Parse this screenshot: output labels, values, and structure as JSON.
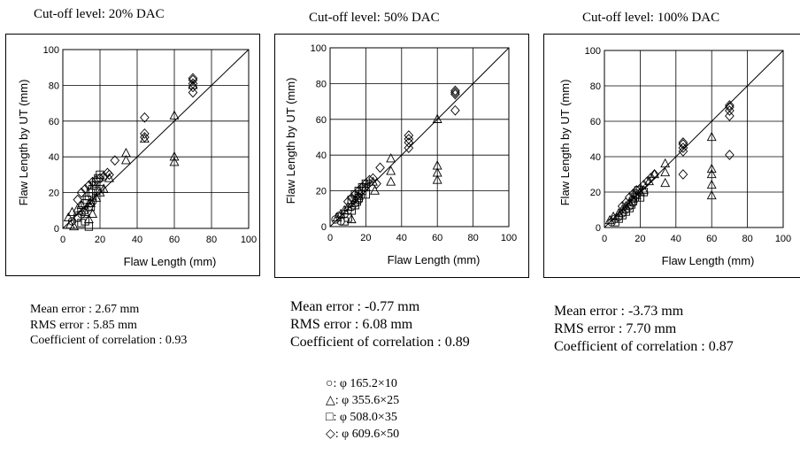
{
  "chart_data": [
    {
      "type": "scatter",
      "title": "Cut-off level: 20% DAC",
      "xlabel": "Flaw Length (mm)",
      "ylabel": "Flaw Length by UT (mm)",
      "xlim": [
        0,
        100
      ],
      "ylim": [
        0,
        100
      ],
      "x_ticks": [
        "0",
        "20",
        "40",
        "60",
        "80",
        "100"
      ],
      "y_ticks": [
        "0",
        "20",
        "40",
        "60",
        "80",
        "100"
      ],
      "grid": true,
      "reference_line": "y = x",
      "series": [
        {
          "marker": "circle",
          "points": [
            [
              5,
              4
            ],
            [
              8,
              6
            ],
            [
              10,
              8
            ],
            [
              12,
              10
            ],
            [
              14,
              12
            ],
            [
              15,
              14
            ],
            [
              16,
              15
            ]
          ]
        },
        {
          "marker": "triangle",
          "points": [
            [
              3,
              6
            ],
            [
              4,
              2
            ],
            [
              5,
              9
            ],
            [
              6,
              1
            ],
            [
              8,
              11
            ],
            [
              10,
              13
            ],
            [
              12,
              9
            ],
            [
              14,
              5
            ],
            [
              15,
              14
            ],
            [
              16,
              8
            ],
            [
              18,
              17
            ],
            [
              20,
              20
            ],
            [
              22,
              22
            ],
            [
              25,
              28
            ],
            [
              34,
              38
            ],
            [
              34,
              42
            ],
            [
              44,
              50
            ],
            [
              60,
              37
            ],
            [
              60,
              40
            ],
            [
              60,
              63
            ],
            [
              70,
              80
            ]
          ]
        },
        {
          "marker": "square",
          "points": [
            [
              8,
              6
            ],
            [
              10,
              10
            ],
            [
              12,
              14
            ],
            [
              14,
              18
            ],
            [
              15,
              20
            ],
            [
              16,
              22
            ],
            [
              17,
              24
            ],
            [
              18,
              26
            ],
            [
              19,
              28
            ],
            [
              20,
              30
            ],
            [
              10,
              3
            ],
            [
              12,
              4
            ],
            [
              14,
              1
            ],
            [
              16,
              18
            ],
            [
              18,
              21
            ],
            [
              20,
              22
            ],
            [
              15,
              12
            ],
            [
              13,
              16
            ]
          ]
        },
        {
          "marker": "diamond",
          "points": [
            [
              12,
              22
            ],
            [
              14,
              24
            ],
            [
              16,
              26
            ],
            [
              18,
              27
            ],
            [
              20,
              28
            ],
            [
              22,
              29
            ],
            [
              24,
              31
            ],
            [
              25,
              30
            ],
            [
              28,
              38
            ],
            [
              44,
              51
            ],
            [
              44,
              53
            ],
            [
              44,
              62
            ],
            [
              70,
              76
            ],
            [
              70,
              79
            ],
            [
              70,
              81
            ],
            [
              70,
              83
            ],
            [
              70,
              84
            ],
            [
              8,
              16
            ],
            [
              10,
              20
            ]
          ]
        }
      ],
      "stats": [
        "Mean error : 2.67 mm",
        "RMS error : 5.85 mm",
        "Coefficient of correlation : 0.93"
      ]
    },
    {
      "type": "scatter",
      "title": "Cut-off level: 50% DAC",
      "xlabel": "Flaw Length (mm)",
      "ylabel": "Flaw Length by UT (mm)",
      "xlim": [
        0,
        100
      ],
      "ylim": [
        0,
        100
      ],
      "x_ticks": [
        "0",
        "20",
        "40",
        "60",
        "80",
        "100"
      ],
      "y_ticks": [
        "0",
        "20",
        "40",
        "60",
        "80",
        "100"
      ],
      "grid": true,
      "reference_line": "y = x",
      "series": [
        {
          "marker": "circle",
          "points": [
            [
              3,
              4
            ],
            [
              5,
              6
            ],
            [
              6,
              3
            ],
            [
              8,
              7
            ],
            [
              10,
              9
            ],
            [
              12,
              11
            ],
            [
              14,
              13
            ],
            [
              16,
              15
            ]
          ]
        },
        {
          "marker": "triangle",
          "points": [
            [
              4,
              5
            ],
            [
              6,
              7
            ],
            [
              8,
              9
            ],
            [
              10,
              11
            ],
            [
              12,
              4
            ],
            [
              14,
              15
            ],
            [
              16,
              17
            ],
            [
              20,
              22
            ],
            [
              24,
              25
            ],
            [
              25,
              20
            ],
            [
              34,
              25
            ],
            [
              34,
              31
            ],
            [
              34,
              38
            ],
            [
              60,
              26
            ],
            [
              60,
              30
            ],
            [
              60,
              34
            ],
            [
              60,
              60
            ]
          ]
        },
        {
          "marker": "square",
          "points": [
            [
              8,
              3
            ],
            [
              10,
              5
            ],
            [
              12,
              9
            ],
            [
              14,
              12
            ],
            [
              15,
              14
            ],
            [
              16,
              16
            ],
            [
              17,
              18
            ],
            [
              18,
              20
            ],
            [
              19,
              22
            ],
            [
              20,
              24
            ],
            [
              12,
              15
            ],
            [
              14,
              18
            ],
            [
              16,
              20
            ],
            [
              18,
              22
            ],
            [
              20,
              18
            ]
          ]
        },
        {
          "marker": "diamond",
          "points": [
            [
              10,
              14
            ],
            [
              12,
              16
            ],
            [
              14,
              18
            ],
            [
              16,
              20
            ],
            [
              18,
              22
            ],
            [
              20,
              24
            ],
            [
              22,
              26
            ],
            [
              24,
              27
            ],
            [
              26,
              24
            ],
            [
              28,
              33
            ],
            [
              44,
              44
            ],
            [
              44,
              47
            ],
            [
              44,
              49
            ],
            [
              44,
              51
            ],
            [
              70,
              65
            ],
            [
              70,
              74
            ],
            [
              70,
              75
            ],
            [
              70,
              76
            ]
          ]
        }
      ],
      "stats": [
        "Mean error : -0.77 mm",
        "RMS error : 6.08 mm",
        "Coefficient of correlation : 0.89"
      ]
    },
    {
      "type": "scatter",
      "title": "Cut-off level: 100% DAC",
      "xlabel": "Flaw Length (mm)",
      "ylabel": "Flaw Length by UT (mm)",
      "xlim": [
        0,
        100
      ],
      "ylim": [
        0,
        100
      ],
      "x_ticks": [
        "0",
        "20",
        "40",
        "60",
        "80",
        "100"
      ],
      "y_ticks": [
        "0",
        "20",
        "40",
        "60",
        "80",
        "100"
      ],
      "grid": true,
      "reference_line": "y = x",
      "series": [
        {
          "marker": "circle",
          "points": [
            [
              4,
              3
            ],
            [
              6,
              5
            ],
            [
              8,
              6
            ],
            [
              10,
              8
            ],
            [
              12,
              10
            ],
            [
              14,
              12
            ],
            [
              16,
              14
            ]
          ]
        },
        {
          "marker": "triangle",
          "points": [
            [
              3,
              4
            ],
            [
              5,
              6
            ],
            [
              8,
              8
            ],
            [
              10,
              10
            ],
            [
              12,
              12
            ],
            [
              14,
              14
            ],
            [
              16,
              16
            ],
            [
              18,
              18
            ],
            [
              20,
              20
            ],
            [
              22,
              21
            ],
            [
              25,
              26
            ],
            [
              28,
              30
            ],
            [
              34,
              25
            ],
            [
              34,
              31
            ],
            [
              34,
              36
            ],
            [
              60,
              18
            ],
            [
              60,
              24
            ],
            [
              60,
              30
            ],
            [
              60,
              33
            ],
            [
              60,
              51
            ]
          ]
        },
        {
          "marker": "square",
          "points": [
            [
              6,
              3
            ],
            [
              8,
              5
            ],
            [
              10,
              7
            ],
            [
              12,
              9
            ],
            [
              14,
              11
            ],
            [
              15,
              13
            ],
            [
              16,
              15
            ],
            [
              17,
              17
            ],
            [
              18,
              19
            ],
            [
              19,
              21
            ],
            [
              20,
              17
            ],
            [
              22,
              20
            ]
          ]
        },
        {
          "marker": "diamond",
          "points": [
            [
              10,
              12
            ],
            [
              12,
              14
            ],
            [
              14,
              17
            ],
            [
              16,
              19
            ],
            [
              18,
              21
            ],
            [
              20,
              22
            ],
            [
              22,
              24
            ],
            [
              24,
              26
            ],
            [
              26,
              28
            ],
            [
              28,
              30
            ],
            [
              44,
              30
            ],
            [
              44,
              43
            ],
            [
              44,
              45
            ],
            [
              44,
              47
            ],
            [
              44,
              48
            ],
            [
              70,
              41
            ],
            [
              70,
              63
            ],
            [
              70,
              66
            ],
            [
              70,
              68
            ],
            [
              70,
              69
            ]
          ]
        }
      ],
      "stats": [
        "Mean error : -3.73 mm",
        "RMS error : 7.70 mm",
        "Coefficient of correlation : 0.87"
      ]
    }
  ],
  "legend": [
    {
      "marker": "circle",
      "label": "○: φ  165.2×10"
    },
    {
      "marker": "triangle",
      "label": "△: φ  355.6×25"
    },
    {
      "marker": "square",
      "label": "□: φ  508.0×35"
    },
    {
      "marker": "diamond",
      "label": "◇: φ  609.6×50"
    }
  ]
}
